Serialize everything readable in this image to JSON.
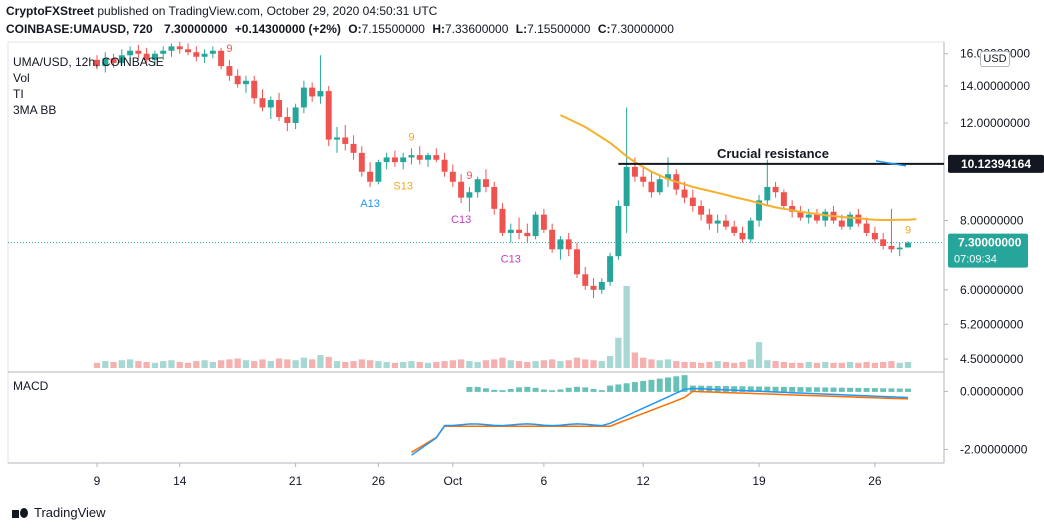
{
  "header": {
    "publisher": "CryptoFXStreet",
    "published_text": "published on TradingView.com, October 29, 2020 04:50:31 UTC",
    "symbol_line": "COINBASE:UMAUSD, 720",
    "last": "7.30000000",
    "change": "+0.14300000 (+2%)",
    "o_label": "O:",
    "o": "7.15500000",
    "h_label": "H:",
    "h": "7.33600000",
    "l_label": "L:",
    "l": "7.15500000",
    "c_label": "C:",
    "c": "7.30000000"
  },
  "indicators": [
    "UMA/USD, 12h, COINBASE",
    "Vol",
    "TI",
    "3MA BB"
  ],
  "macd_label": "MACD",
  "currency": "USD",
  "footer": {
    "brand": "TradingView"
  },
  "colors": {
    "up": "#26a69a",
    "down": "#ef5350",
    "ma": "#f5b12b",
    "macd": "#2196f3",
    "signal": "#ff6d00",
    "vol_up": "#a8d8d3",
    "vol_down": "#f5b1b0"
  },
  "chart_data": [
    {
      "type": "candlestick",
      "title": "UMA/USD, 12h, COINBASE",
      "x_ticks": [
        "9",
        "14",
        "21",
        "26",
        "Oct",
        "6",
        "12",
        "19",
        "26"
      ],
      "y_ticks": [
        "16.00000000",
        "14.00000000",
        "12.00000000",
        "8.00000000",
        "6.00000000",
        "5.20000000",
        "4.50000000"
      ],
      "y_range": [
        4.3,
        16.8
      ],
      "scale": "log",
      "last_price_label": "7.30000000",
      "countdown": "07:09:34",
      "resistance": {
        "label": "Crucial resistance",
        "value": 10.12394164,
        "value_label": "10.12394164"
      },
      "annotations": [
        {
          "text": "9",
          "color": "#ef5350",
          "index": 16
        },
        {
          "text": "A13",
          "color": "#2196f3",
          "index": 33
        },
        {
          "text": "9",
          "color": "#f5a623",
          "index": 38
        },
        {
          "text": "S13",
          "color": "#f5a623",
          "index": 37
        },
        {
          "text": "9",
          "color": "#ef5350",
          "index": 45
        },
        {
          "text": "C13",
          "color": "#c33cc3",
          "index": 44
        },
        {
          "text": "C13",
          "color": "#c33cc3",
          "index": 50
        },
        {
          "text": "9",
          "color": "#f5a623",
          "index": 98
        }
      ],
      "candles": [
        [
          15.6,
          15.9,
          15.0,
          15.2
        ],
        [
          15.2,
          16.1,
          14.8,
          15.7
        ],
        [
          15.7,
          16.0,
          15.1,
          15.4
        ],
        [
          15.4,
          16.3,
          15.2,
          15.9
        ],
        [
          15.9,
          16.5,
          15.5,
          16.2
        ],
        [
          16.2,
          16.6,
          15.7,
          16.0
        ],
        [
          16.0,
          16.4,
          15.4,
          15.6
        ],
        [
          15.6,
          16.2,
          15.2,
          16.0
        ],
        [
          16.0,
          16.5,
          15.6,
          16.2
        ],
        [
          16.2,
          16.7,
          15.8,
          16.5
        ],
        [
          16.5,
          16.8,
          16.0,
          16.3
        ],
        [
          16.3,
          16.7,
          15.9,
          16.1
        ],
        [
          16.1,
          16.5,
          15.5,
          15.8
        ],
        [
          15.8,
          16.3,
          15.4,
          16.0
        ],
        [
          16.0,
          16.5,
          15.7,
          16.2
        ],
        [
          16.2,
          16.4,
          15.0,
          15.2
        ],
        [
          15.2,
          15.6,
          14.3,
          14.6
        ],
        [
          14.6,
          15.0,
          13.9,
          14.1
        ],
        [
          14.1,
          14.6,
          13.6,
          14.3
        ],
        [
          14.3,
          14.6,
          13.0,
          13.3
        ],
        [
          13.3,
          13.8,
          12.6,
          12.8
        ],
        [
          12.8,
          13.4,
          12.2,
          13.2
        ],
        [
          13.2,
          13.6,
          12.1,
          12.3
        ],
        [
          12.3,
          12.8,
          11.6,
          12.0
        ],
        [
          12.0,
          13.0,
          11.7,
          12.8
        ],
        [
          12.8,
          14.3,
          12.5,
          13.9
        ],
        [
          13.9,
          14.2,
          13.1,
          13.4
        ],
        [
          13.4,
          15.9,
          13.0,
          13.7
        ],
        [
          13.7,
          14.0,
          10.9,
          11.2
        ],
        [
          11.2,
          11.8,
          10.6,
          11.3
        ],
        [
          11.3,
          11.9,
          10.7,
          11.0
        ],
        [
          11.0,
          11.4,
          10.3,
          10.6
        ],
        [
          10.6,
          10.9,
          9.6,
          9.8
        ],
        [
          9.8,
          10.2,
          9.2,
          9.4
        ],
        [
          9.4,
          10.3,
          9.3,
          10.2
        ],
        [
          10.2,
          10.6,
          9.9,
          10.4
        ],
        [
          10.4,
          10.7,
          10.0,
          10.2
        ],
        [
          10.2,
          10.6,
          9.9,
          10.4
        ],
        [
          10.4,
          10.8,
          10.1,
          10.5
        ],
        [
          10.5,
          10.9,
          10.1,
          10.3
        ],
        [
          10.3,
          10.6,
          10.0,
          10.5
        ],
        [
          10.5,
          10.8,
          10.2,
          10.3
        ],
        [
          10.3,
          10.6,
          9.6,
          9.8
        ],
        [
          9.8,
          10.1,
          9.2,
          9.4
        ],
        [
          9.4,
          9.7,
          8.6,
          8.8
        ],
        [
          8.8,
          9.2,
          8.3,
          9.0
        ],
        [
          9.0,
          9.6,
          8.8,
          9.5
        ],
        [
          9.5,
          9.9,
          9.0,
          9.2
        ],
        [
          9.2,
          9.4,
          8.2,
          8.4
        ],
        [
          8.4,
          8.6,
          7.5,
          7.6
        ],
        [
          7.6,
          7.9,
          7.3,
          7.7
        ],
        [
          7.7,
          8.1,
          7.4,
          7.6
        ],
        [
          7.6,
          7.9,
          7.3,
          7.5
        ],
        [
          7.5,
          8.3,
          7.4,
          8.2
        ],
        [
          8.2,
          8.4,
          7.6,
          7.7
        ],
        [
          7.7,
          7.9,
          7.0,
          7.1
        ],
        [
          7.1,
          7.5,
          6.8,
          7.4
        ],
        [
          7.4,
          7.6,
          6.9,
          7.1
        ],
        [
          7.1,
          7.3,
          6.3,
          6.4
        ],
        [
          6.4,
          6.6,
          6.0,
          6.1
        ],
        [
          6.1,
          6.3,
          5.8,
          6.0
        ],
        [
          6.0,
          6.3,
          5.9,
          6.2
        ],
        [
          6.2,
          7.0,
          6.1,
          6.9
        ],
        [
          6.9,
          8.7,
          6.8,
          8.5
        ],
        [
          8.5,
          12.8,
          7.6,
          10.0
        ],
        [
          10.0,
          10.4,
          9.4,
          9.6
        ],
        [
          9.6,
          10.0,
          9.2,
          9.4
        ],
        [
          9.4,
          9.8,
          8.8,
          9.0
        ],
        [
          9.0,
          9.7,
          8.9,
          9.5
        ],
        [
          9.5,
          10.4,
          9.2,
          9.7
        ],
        [
          9.7,
          9.9,
          8.9,
          9.1
        ],
        [
          9.1,
          9.4,
          8.6,
          8.8
        ],
        [
          8.8,
          9.1,
          8.3,
          8.5
        ],
        [
          8.5,
          8.7,
          8.0,
          8.2
        ],
        [
          8.2,
          8.4,
          7.7,
          7.9
        ],
        [
          7.9,
          8.2,
          7.6,
          8.0
        ],
        [
          8.0,
          8.2,
          7.7,
          7.8
        ],
        [
          7.8,
          8.0,
          7.5,
          7.6
        ],
        [
          7.6,
          7.8,
          7.3,
          7.4
        ],
        [
          7.4,
          8.1,
          7.3,
          8.0
        ],
        [
          8.0,
          8.9,
          7.8,
          8.7
        ],
        [
          8.7,
          10.3,
          8.5,
          9.2
        ],
        [
          9.2,
          9.4,
          8.8,
          9.0
        ],
        [
          9.0,
          9.1,
          8.4,
          8.5
        ],
        [
          8.5,
          8.7,
          8.1,
          8.3
        ],
        [
          8.3,
          8.5,
          8.0,
          8.1
        ],
        [
          8.1,
          8.4,
          7.9,
          8.2
        ],
        [
          8.2,
          8.4,
          7.9,
          8.0
        ],
        [
          8.0,
          8.4,
          7.8,
          8.3
        ],
        [
          8.3,
          8.5,
          7.9,
          8.0
        ],
        [
          8.0,
          8.2,
          7.7,
          7.8
        ],
        [
          7.8,
          8.3,
          7.7,
          8.2
        ],
        [
          8.2,
          8.4,
          7.8,
          7.9
        ],
        [
          7.9,
          8.1,
          7.5,
          7.6
        ],
        [
          7.6,
          7.8,
          7.3,
          7.4
        ],
        [
          7.4,
          7.6,
          7.1,
          7.2
        ],
        [
          7.2,
          8.4,
          7.0,
          7.1
        ],
        [
          7.1,
          7.3,
          6.9,
          7.15
        ],
        [
          7.155,
          7.336,
          7.155,
          7.3
        ]
      ],
      "ma": [
        null,
        null,
        null,
        null,
        null,
        null,
        null,
        null,
        null,
        null,
        null,
        null,
        null,
        null,
        null,
        null,
        null,
        null,
        null,
        null,
        null,
        null,
        null,
        null,
        null,
        null,
        null,
        null,
        null,
        null,
        null,
        null,
        null,
        null,
        null,
        null,
        null,
        null,
        null,
        null,
        null,
        null,
        null,
        null,
        null,
        null,
        null,
        null,
        null,
        null,
        null,
        null,
        null,
        null,
        null,
        null,
        12.4,
        12.2,
        12.0,
        11.8,
        11.55,
        11.3,
        11.05,
        10.75,
        10.45,
        10.2,
        10.0,
        9.8,
        9.65,
        9.5,
        9.4,
        9.3,
        9.2,
        9.12,
        9.05,
        8.98,
        8.9,
        8.82,
        8.75,
        8.68,
        8.6,
        8.52,
        8.45,
        8.4,
        8.35,
        8.3,
        8.26,
        8.22,
        8.18,
        8.15,
        8.12,
        8.1,
        8.08,
        8.05,
        8.03,
        8.02,
        8.02,
        8.03,
        8.03,
        8.05
      ],
      "volume": [
        0.6,
        0.8,
        0.7,
        0.9,
        1.0,
        0.8,
        0.7,
        0.6,
        0.8,
        0.9,
        0.7,
        0.6,
        0.8,
        0.9,
        0.7,
        0.9,
        1.0,
        1.1,
        0.9,
        0.8,
        1.0,
        0.8,
        1.1,
        1.0,
        0.9,
        1.2,
        1.0,
        1.5,
        1.3,
        0.8,
        0.7,
        0.8,
        1.0,
        0.9,
        0.8,
        0.7,
        0.6,
        0.7,
        0.8,
        0.7,
        0.6,
        0.7,
        0.8,
        0.9,
        1.0,
        0.8,
        0.7,
        0.9,
        1.0,
        1.2,
        0.9,
        0.8,
        0.7,
        0.8,
        0.9,
        1.0,
        0.8,
        0.9,
        1.2,
        1.0,
        0.9,
        0.8,
        1.4,
        3.5,
        9.5,
        1.8,
        1.2,
        1.0,
        0.9,
        1.0,
        0.8,
        0.7,
        0.7,
        0.6,
        0.7,
        0.8,
        0.7,
        0.6,
        0.7,
        1.0,
        3.0,
        0.9,
        0.8,
        0.7,
        0.6,
        0.6,
        0.7,
        0.6,
        0.7,
        0.6,
        0.6,
        0.7,
        0.6,
        0.7,
        0.6,
        0.7,
        0.8,
        0.6,
        0.7
      ],
      "volume_ticks": [],
      "macd_ticks": [
        "0.00000000",
        "-2.00000000"
      ],
      "macd_range": [
        -2.4,
        0.6
      ],
      "macd": [],
      "signal": [],
      "histogram": []
    }
  ]
}
